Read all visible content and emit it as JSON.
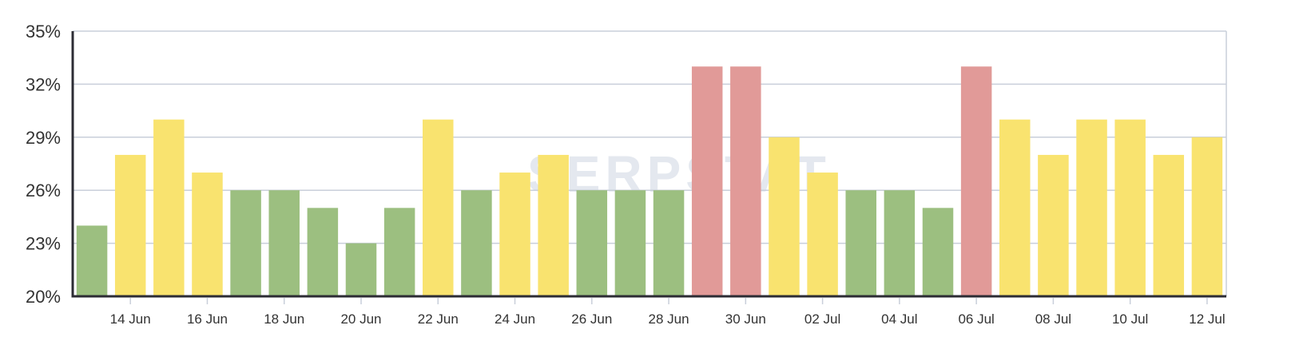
{
  "watermark": "SERPSTAT",
  "chart_data": {
    "type": "bar",
    "categories": [
      "13 Jun",
      "14 Jun",
      "15 Jun",
      "16 Jun",
      "17 Jun",
      "18 Jun",
      "19 Jun",
      "20 Jun",
      "21 Jun",
      "22 Jun",
      "23 Jun",
      "24 Jun",
      "25 Jun",
      "26 Jun",
      "27 Jun",
      "28 Jun",
      "29 Jun",
      "30 Jun",
      "01 Jul",
      "02 Jul",
      "03 Jul",
      "04 Jul",
      "05 Jul",
      "06 Jul",
      "07 Jul",
      "08 Jul",
      "09 Jul",
      "10 Jul",
      "11 Jul",
      "12 Jul"
    ],
    "values": [
      24,
      28,
      30,
      27,
      26,
      26,
      25,
      23,
      25,
      30,
      26,
      27,
      28,
      26,
      26,
      26,
      33,
      33,
      29,
      27,
      26,
      26,
      25,
      33,
      30,
      28,
      30,
      30,
      28,
      29
    ],
    "tick_labels": [
      "14 Jun",
      "16 Jun",
      "18 Jun",
      "20 Jun",
      "22 Jun",
      "24 Jun",
      "26 Jun",
      "28 Jun",
      "30 Jun",
      "02 Jul",
      "04 Jul",
      "06 Jul",
      "08 Jul",
      "10 Jul",
      "12 Jul"
    ],
    "y_ticks": [
      "20%",
      "23%",
      "26%",
      "29%",
      "32%",
      "35%"
    ],
    "y_tick_values": [
      20,
      23,
      26,
      29,
      32,
      35
    ],
    "ylim": [
      20,
      35
    ],
    "title": "",
    "xlabel": "",
    "ylabel": "",
    "grid": true,
    "colors": {
      "low": "#9cbf80",
      "mid": "#f9e36f",
      "high": "#e19a98"
    },
    "color_thresholds": {
      "mid_from": 27,
      "high_from": 33
    }
  }
}
